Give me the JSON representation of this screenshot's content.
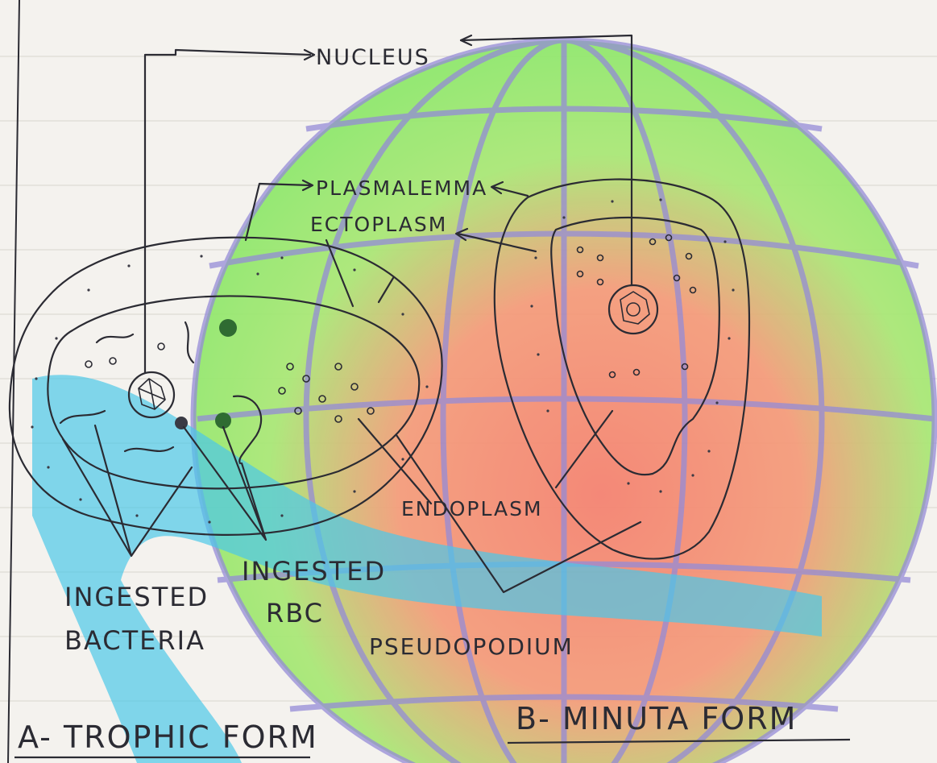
{
  "diagram": {
    "labels": {
      "nucleus": "NUCLEUS",
      "plasmalemma": "PLASMALEMMA",
      "ectoplasm": "ECTOPLASM",
      "endoplasm": "ENDOPLASM",
      "pseudopodium": "PSEUDOPODIUM",
      "ingested_bacteria_line1": "INGESTED",
      "ingested_bacteria_line2": "BACTERIA",
      "ingested_rbc_line1": "INGESTED",
      "ingested_rbc_line2": "RBC"
    },
    "captions": {
      "trophic": "A- TROPHIC FORM",
      "minuta": "B- MINUTA FORM"
    },
    "colors": {
      "ink": "#2b2b33",
      "paper": "#f4f2ee",
      "watermark_green": "#8ee86a",
      "watermark_red": "#f5806e",
      "watermark_cyan": "#3ec5e8",
      "watermark_grid": "#8c83d6"
    },
    "watermark": "globe-logo"
  }
}
